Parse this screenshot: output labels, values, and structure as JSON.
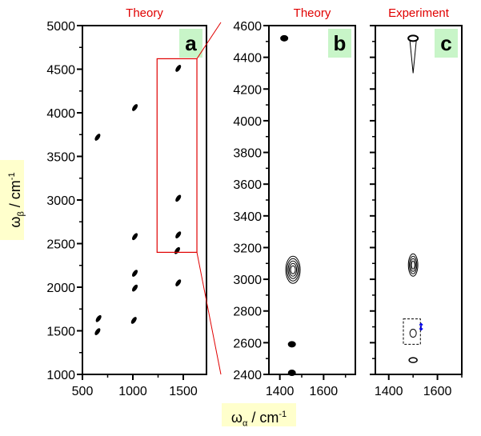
{
  "chart_data": [
    {
      "id": "a",
      "type": "scatter",
      "title": "Theory",
      "panel_label": "a",
      "xlim": [
        500,
        1730
      ],
      "ylim": [
        1000,
        5000
      ],
      "xticks": [
        500,
        1000,
        1500
      ],
      "yticks": [
        1000,
        1500,
        2000,
        2500,
        3000,
        3500,
        4000,
        4500,
        5000
      ],
      "points": [
        [
          650,
          3720
        ],
        [
          1020,
          4060
        ],
        [
          1450,
          4510
        ],
        [
          1450,
          3020
        ],
        [
          1450,
          2600
        ],
        [
          1440,
          2420
        ],
        [
          1020,
          2580
        ],
        [
          1020,
          2160
        ],
        [
          1020,
          1990
        ],
        [
          1450,
          2050
        ],
        [
          660,
          1640
        ],
        [
          650,
          1490
        ],
        [
          1010,
          1620
        ]
      ],
      "zoom_region": {
        "x": [
          1240,
          1635
        ],
        "y": [
          2400,
          4620
        ]
      }
    },
    {
      "id": "b",
      "type": "scatter",
      "title": "Theory",
      "panel_label": "b",
      "xlim": [
        1350,
        1745
      ],
      "ylim": [
        2400,
        4600
      ],
      "xticks": [
        1400,
        1600
      ],
      "yticks": [
        2400,
        2600,
        2800,
        3000,
        3200,
        3400,
        3600,
        3800,
        4000,
        4200,
        4400,
        4600
      ],
      "points": [
        [
          1420,
          4520
        ],
        [
          1460,
          3060
        ],
        [
          1455,
          2590
        ],
        [
          1455,
          2410
        ]
      ]
    },
    {
      "id": "c",
      "type": "scatter",
      "title": "Experiment",
      "panel_label": "c",
      "xlim": [
        1345,
        1700
      ],
      "ylim": [
        2400,
        4600
      ],
      "xticks": [
        1400,
        1600
      ],
      "yticks": [
        2400,
        2600,
        2800,
        3000,
        3200,
        3400,
        3600,
        3800,
        4000,
        4200,
        4400,
        4600
      ],
      "points": [
        [
          1500,
          4520
        ],
        [
          1500,
          3090
        ],
        [
          1500,
          2490
        ]
      ],
      "annotation": {
        "x": [
          1460,
          1530
        ],
        "y": [
          2590,
          2750
        ],
        "marker": [
          1500,
          2660
        ]
      }
    }
  ],
  "xlabel": "ω",
  "xlabel_sub": "α",
  "xlabel_unit": " / cm",
  "ylabel": "ω",
  "ylabel_sub": "β",
  "ylabel_unit": " / cm",
  "unit_exp": "-1",
  "colors": {
    "title": "#e00000",
    "label_bg": "#c8f5c8",
    "axis_label_bg": "#ffffcc",
    "zoom": "#e00000",
    "arrow": "#0000ee"
  }
}
